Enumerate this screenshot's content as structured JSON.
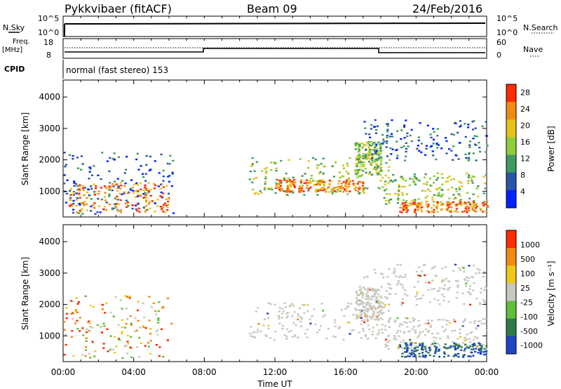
{
  "header": {
    "station": "Pykkvibaer (fitACF)",
    "beam": "Beam 09",
    "date": "24/Feb/2016"
  },
  "status_panel": {
    "nsky_label": "N.Sky",
    "nsky_ticks": [
      "10^5",
      "10^0"
    ],
    "nsearch_label": "N.Search",
    "nsearch_ticks": [
      "10^5",
      "10^0"
    ],
    "freq_label": "Freq.",
    "freq_unit": "[MHz]",
    "freq_ticks": [
      "18",
      "8"
    ],
    "nave_label": "Nave",
    "nave_ticks": [
      "60",
      "0"
    ],
    "cpid_label": "CPID",
    "cpid_text": "normal (fast stereo) 153"
  },
  "chart_data": [
    {
      "type": "heatmap",
      "name": "power",
      "ylabel": "Slant Range [km]",
      "ytick_labels": [
        "1000",
        "2000",
        "3000",
        "4000"
      ],
      "yticks": [
        1000,
        2000,
        3000,
        4000
      ],
      "ylim": [
        180,
        4540
      ],
      "xlim": [
        0,
        24
      ],
      "colorbar_label": "Power [dB]",
      "colorbar_ticks": [
        "4",
        "8",
        "12",
        "16",
        "20",
        "24",
        "28"
      ],
      "colorbar_colors": [
        "#0022ff",
        "#2a55a8",
        "#3f9a60",
        "#8fce3a",
        "#e6c21a",
        "#f08a12",
        "#ff2a00"
      ],
      "blobs": [
        {
          "t": [
            0.0,
            6.2
          ],
          "r": [
            300,
            2300
          ],
          "level": "low"
        },
        {
          "t": [
            0.3,
            6.0
          ],
          "r": [
            350,
            1300
          ],
          "level": "high"
        },
        {
          "t": [
            10.5,
            18.5
          ],
          "r": [
            900,
            2100
          ],
          "level": "mid"
        },
        {
          "t": [
            12.0,
            17.0
          ],
          "r": [
            1000,
            1400
          ],
          "level": "high"
        },
        {
          "t": [
            16.5,
            18.0
          ],
          "r": [
            1500,
            2600
          ],
          "level": "mid"
        },
        {
          "t": [
            18.0,
            24.0
          ],
          "r": [
            600,
            1600
          ],
          "level": "mid"
        },
        {
          "t": [
            19.0,
            24.0
          ],
          "r": [
            350,
            700
          ],
          "level": "high"
        },
        {
          "t": [
            17.0,
            24.0
          ],
          "r": [
            2000,
            3300
          ],
          "level": "low"
        }
      ]
    },
    {
      "type": "heatmap",
      "name": "velocity",
      "ylabel": "Slant Range [km]",
      "ytick_labels": [
        "1000",
        "2000",
        "3000",
        "4000"
      ],
      "yticks": [
        1000,
        2000,
        3000,
        4000
      ],
      "ylim": [
        180,
        4540
      ],
      "xlim": [
        0,
        24
      ],
      "xlabel": "Time UT",
      "xtick_labels": [
        "00:00",
        "04:00",
        "08:00",
        "12:00",
        "16:00",
        "20:00",
        "00:00"
      ],
      "xticks": [
        0,
        4,
        8,
        12,
        16,
        20,
        24
      ],
      "colorbar_label": "Velocity [m s⁻¹]",
      "colorbar_ticks": [
        "1000",
        "500",
        "100",
        "25",
        "-25",
        "-100",
        "-500",
        "-1000"
      ],
      "colorbar_colors": [
        "#1f44c8",
        "#2f7a4a",
        "#5fbe3a",
        "#c8c8c0",
        "#f0c81a",
        "#f08a12",
        "#ff2a00"
      ],
      "blobs": [
        {
          "t": [
            0.0,
            6.2
          ],
          "r": [
            300,
            2300
          ],
          "v": "mixed"
        },
        {
          "t": [
            10.5,
            18.5
          ],
          "r": [
            900,
            2100
          ],
          "v": "grey"
        },
        {
          "t": [
            16.5,
            18.0
          ],
          "r": [
            1500,
            2600
          ],
          "v": "grey"
        },
        {
          "t": [
            18.0,
            24.0
          ],
          "r": [
            600,
            1600
          ],
          "v": "grey"
        },
        {
          "t": [
            19.0,
            24.0
          ],
          "r": [
            350,
            800
          ],
          "v": "blue-green"
        },
        {
          "t": [
            17.0,
            24.0
          ],
          "r": [
            2000,
            3300
          ],
          "v": "grey"
        }
      ]
    }
  ]
}
